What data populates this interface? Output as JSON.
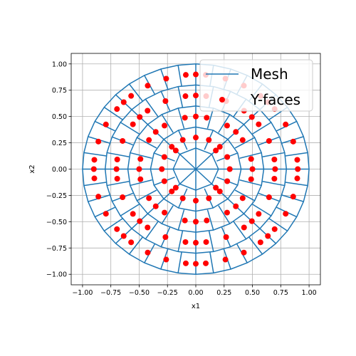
{
  "chart_data": {
    "type": "scatter",
    "title": "",
    "xlabel": "x1",
    "ylabel": "x2",
    "xlim": [
      -1.1,
      1.1
    ],
    "ylim": [
      -1.1,
      1.1
    ],
    "x_ticks": [
      -1.0,
      -0.75,
      -0.5,
      -0.25,
      0.0,
      0.25,
      0.5,
      0.75,
      1.0
    ],
    "y_ticks": [
      -1.0,
      -0.75,
      -0.5,
      -0.25,
      0.0,
      0.25,
      0.5,
      0.75,
      1.0
    ],
    "x_tick_labels": [
      "−1.00",
      "−0.75",
      "−0.50",
      "−0.25",
      "0.00",
      "0.25",
      "0.50",
      "0.75",
      "1.00"
    ],
    "y_tick_labels": [
      "−1.00",
      "−0.75",
      "−0.50",
      "−0.25",
      "0.00",
      "0.25",
      "0.50",
      "0.75",
      "1.00"
    ],
    "grid": true,
    "legend": {
      "placement": "top-right",
      "entries": [
        {
          "label": "Mesh",
          "marker": "line",
          "color": "#1f77b4"
        },
        {
          "label": "Y-faces",
          "marker": "dot",
          "color": "#ff0000"
        }
      ]
    },
    "mesh": {
      "color": "#1f77b4",
      "ring_radii": [
        0.0,
        0.2,
        0.4,
        0.6,
        0.8,
        1.0
      ],
      "spokes_per_ring": [
        0,
        8,
        16,
        24,
        32,
        40
      ]
    },
    "series": [
      {
        "name": "Y-faces",
        "color": "#ff0000",
        "points": [
          [
            0.1768,
            0.1768
          ],
          [
            -0.1768,
            0.1768
          ],
          [
            -0.1768,
            -0.1768
          ],
          [
            0.1768,
            -0.1768
          ],
          [
            0.115,
            0.2776
          ],
          [
            0.2776,
            0.115
          ],
          [
            0.2776,
            -0.115
          ],
          [
            0.115,
            -0.2776
          ],
          [
            -0.115,
            -0.2776
          ],
          [
            -0.2776,
            -0.115
          ],
          [
            -0.2776,
            0.115
          ],
          [
            -0.115,
            0.2776
          ],
          [
            0.3,
            0.0
          ],
          [
            0.2121,
            0.2121
          ],
          [
            0.0,
            0.3
          ],
          [
            -0.2121,
            0.2121
          ],
          [
            -0.3,
            0.0
          ],
          [
            -0.2121,
            -0.2121
          ],
          [
            0.0,
            -0.3
          ],
          [
            0.2121,
            -0.2121
          ],
          [
            0.0962,
            0.4886
          ],
          [
            0.2764,
            0.4136
          ],
          [
            0.4136,
            0.2764
          ],
          [
            0.4886,
            0.0962
          ],
          [
            0.4886,
            -0.0962
          ],
          [
            0.4136,
            -0.2764
          ],
          [
            0.2764,
            -0.4136
          ],
          [
            0.0962,
            -0.4886
          ],
          [
            -0.0962,
            -0.4886
          ],
          [
            -0.2764,
            -0.4136
          ],
          [
            -0.4136,
            -0.2764
          ],
          [
            -0.4886,
            -0.0962
          ],
          [
            -0.4886,
            0.0962
          ],
          [
            -0.4136,
            0.2764
          ],
          [
            -0.2764,
            0.4136
          ],
          [
            -0.0962,
            0.4886
          ],
          [
            0.5,
            0.0
          ],
          [
            0.3536,
            0.3536
          ],
          [
            0.0,
            0.5
          ],
          [
            -0.3536,
            0.3536
          ],
          [
            -0.5,
            0.0
          ],
          [
            -0.3536,
            -0.3536
          ],
          [
            0.0,
            -0.5
          ],
          [
            0.3536,
            -0.3536
          ],
          [
            0.0913,
            0.6937
          ],
          [
            0.2677,
            0.6465
          ],
          [
            0.4259,
            0.5551
          ],
          [
            0.5551,
            0.4259
          ],
          [
            0.6465,
            0.2677
          ],
          [
            0.6937,
            0.0913
          ],
          [
            0.6937,
            -0.0913
          ],
          [
            0.6465,
            -0.2677
          ],
          [
            0.5551,
            -0.4259
          ],
          [
            0.4259,
            -0.5551
          ],
          [
            0.2677,
            -0.6465
          ],
          [
            0.0913,
            -0.6937
          ],
          [
            -0.0913,
            -0.6937
          ],
          [
            -0.2677,
            -0.6465
          ],
          [
            -0.4259,
            -0.5551
          ],
          [
            -0.5551,
            -0.4259
          ],
          [
            -0.6465,
            -0.2677
          ],
          [
            -0.6937,
            -0.0913
          ],
          [
            -0.6937,
            0.0913
          ],
          [
            -0.6465,
            0.2677
          ],
          [
            -0.5551,
            0.4259
          ],
          [
            -0.4259,
            0.5551
          ],
          [
            -0.2677,
            0.6465
          ],
          [
            -0.0913,
            0.6937
          ],
          [
            0.7,
            0.0
          ],
          [
            0.495,
            0.495
          ],
          [
            0.0,
            0.7
          ],
          [
            -0.495,
            0.495
          ],
          [
            -0.7,
            0.0
          ],
          [
            -0.495,
            -0.495
          ],
          [
            0.0,
            -0.7
          ],
          [
            0.495,
            -0.495
          ],
          [
            0.0882,
            0.8957
          ],
          [
            0.2616,
            0.86
          ],
          [
            0.4244,
            0.7933
          ],
          [
            0.571,
            0.696
          ],
          [
            0.696,
            0.571
          ],
          [
            0.7933,
            0.4244
          ],
          [
            0.86,
            0.2616
          ],
          [
            0.8957,
            0.0882
          ],
          [
            0.8957,
            -0.0882
          ],
          [
            0.86,
            -0.2616
          ],
          [
            0.7933,
            -0.4244
          ],
          [
            0.696,
            -0.571
          ],
          [
            0.571,
            -0.696
          ],
          [
            0.4244,
            -0.7933
          ],
          [
            0.2616,
            -0.86
          ],
          [
            0.0882,
            -0.8957
          ],
          [
            -0.0882,
            -0.8957
          ],
          [
            -0.2616,
            -0.86
          ],
          [
            -0.4244,
            -0.7933
          ],
          [
            -0.571,
            -0.696
          ],
          [
            -0.696,
            -0.571
          ],
          [
            -0.7933,
            -0.4244
          ],
          [
            -0.86,
            -0.2616
          ],
          [
            -0.8957,
            -0.0882
          ],
          [
            -0.8957,
            0.0882
          ],
          [
            -0.86,
            0.2616
          ],
          [
            -0.7933,
            0.4244
          ],
          [
            -0.696,
            0.571
          ],
          [
            -0.571,
            0.696
          ],
          [
            -0.4244,
            0.7933
          ],
          [
            -0.2616,
            0.86
          ],
          [
            -0.0882,
            0.8957
          ],
          [
            0.9,
            0.0
          ],
          [
            0.6364,
            0.6364
          ],
          [
            0.0,
            0.9
          ],
          [
            -0.6364,
            0.6364
          ],
          [
            -0.9,
            0.0
          ],
          [
            -0.6364,
            -0.6364
          ],
          [
            0.0,
            -0.9
          ],
          [
            0.6364,
            -0.6364
          ]
        ]
      }
    ]
  }
}
